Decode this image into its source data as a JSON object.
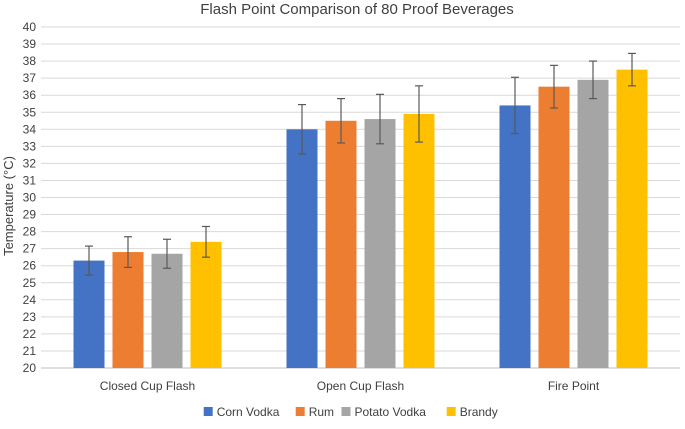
{
  "chart_data": {
    "type": "bar",
    "title": "Flash Point Comparison of 80 Proof Beverages",
    "xlabel": "",
    "ylabel": "Temperature (°C)",
    "ylim": [
      20,
      40
    ],
    "ytick_step": 1,
    "grid": true,
    "legend_position": "bottom",
    "categories": [
      "Closed Cup Flash",
      "Open Cup Flash",
      "Fire Point"
    ],
    "series": [
      {
        "name": "Corn Vodka",
        "color": "#4472C4",
        "values": [
          26.3,
          34.0,
          35.4
        ],
        "errors": [
          0.85,
          1.45,
          1.65
        ]
      },
      {
        "name": "Rum",
        "color": "#ED7D31",
        "values": [
          26.8,
          34.5,
          36.5
        ],
        "errors": [
          0.9,
          1.3,
          1.25
        ]
      },
      {
        "name": "Potato Vodka",
        "color": "#A5A5A5",
        "values": [
          26.7,
          34.6,
          36.9
        ],
        "errors": [
          0.85,
          1.45,
          1.1
        ]
      },
      {
        "name": "Brandy",
        "color": "#FFC000",
        "values": [
          27.4,
          34.9,
          37.5
        ],
        "errors": [
          0.9,
          1.65,
          0.95
        ]
      }
    ]
  }
}
